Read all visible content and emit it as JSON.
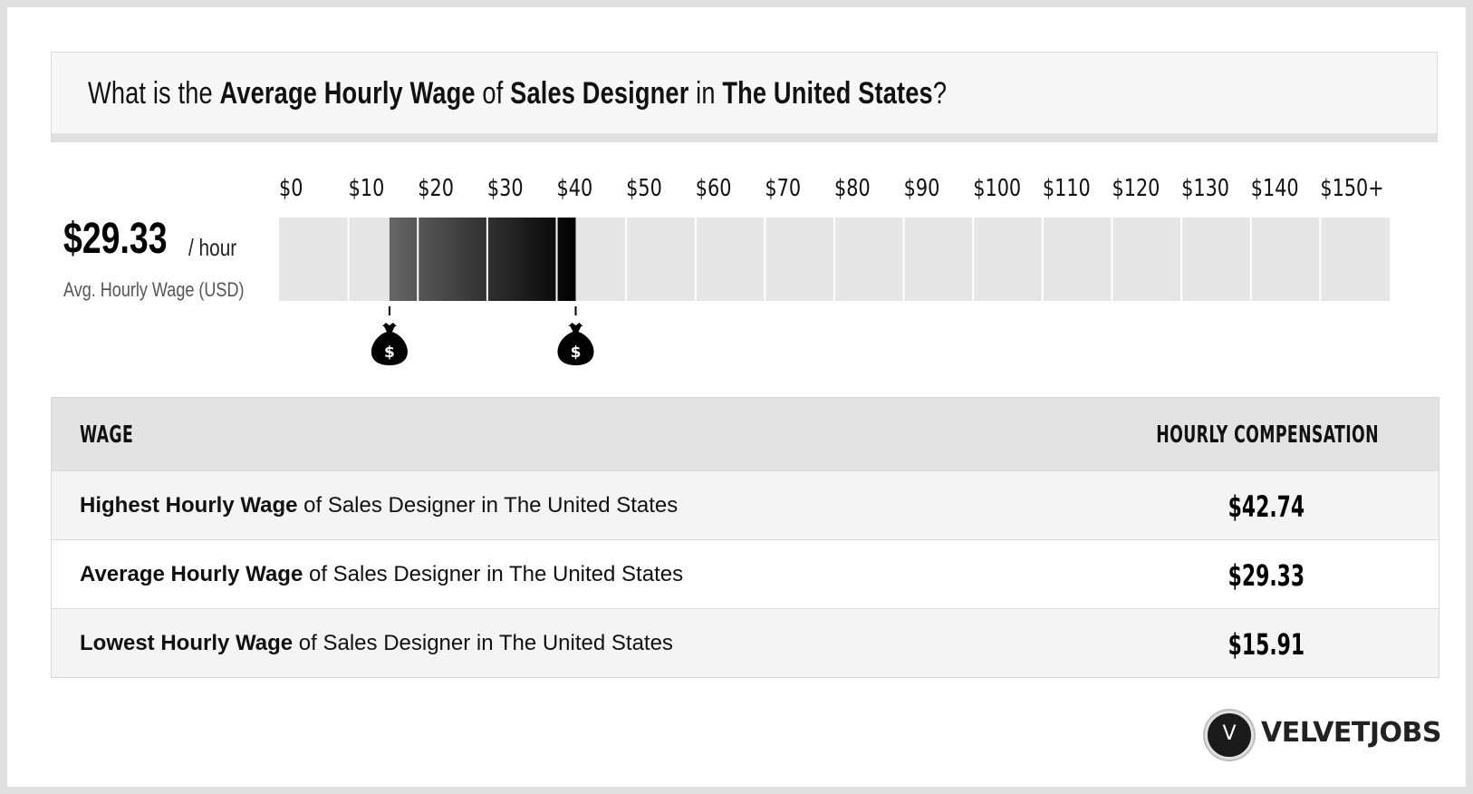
{
  "header": {
    "prefix": "What is the ",
    "metric": "Average Hourly Wage",
    "of": " of ",
    "job": "Sales Designer",
    "in": " in ",
    "location": "The United States",
    "suffix": "?"
  },
  "summary": {
    "value": "$29.33",
    "unit": "/ hour",
    "caption": "Avg. Hourly Wage (USD)"
  },
  "chart_data": {
    "type": "bar",
    "tick_labels": [
      "$0",
      "$10",
      "$20",
      "$30",
      "$40",
      "$50",
      "$60",
      "$70",
      "$80",
      "$90",
      "$100",
      "$110",
      "$120",
      "$130",
      "$140",
      "$150+"
    ],
    "xlim": [
      0,
      150
    ],
    "range": {
      "low": 15.91,
      "high": 42.74,
      "average": 29.33
    },
    "markers": [
      {
        "value": 15.91,
        "icon": "money-bag-icon",
        "symbol": "$"
      },
      {
        "value": 42.74,
        "icon": "money-bag-icon",
        "symbol": "$"
      }
    ],
    "colors": {
      "empty": "#e6e6e6",
      "range_start": "#666666",
      "range_end": "#000000"
    }
  },
  "table": {
    "headers": {
      "wage": "WAGE",
      "comp": "HOURLY COMPENSATION"
    },
    "rows": [
      {
        "bold": "Highest Hourly Wage",
        "rest": " of Sales Designer in The United States",
        "value": "$42.74"
      },
      {
        "bold": "Average Hourly Wage",
        "rest": " of Sales Designer in The United States",
        "value": "$29.33"
      },
      {
        "bold": "Lowest Hourly Wage",
        "rest": " of Sales Designer in The United States",
        "value": "$15.91"
      }
    ]
  },
  "logo": {
    "mark": "V",
    "text": "VELVETJOBS"
  }
}
